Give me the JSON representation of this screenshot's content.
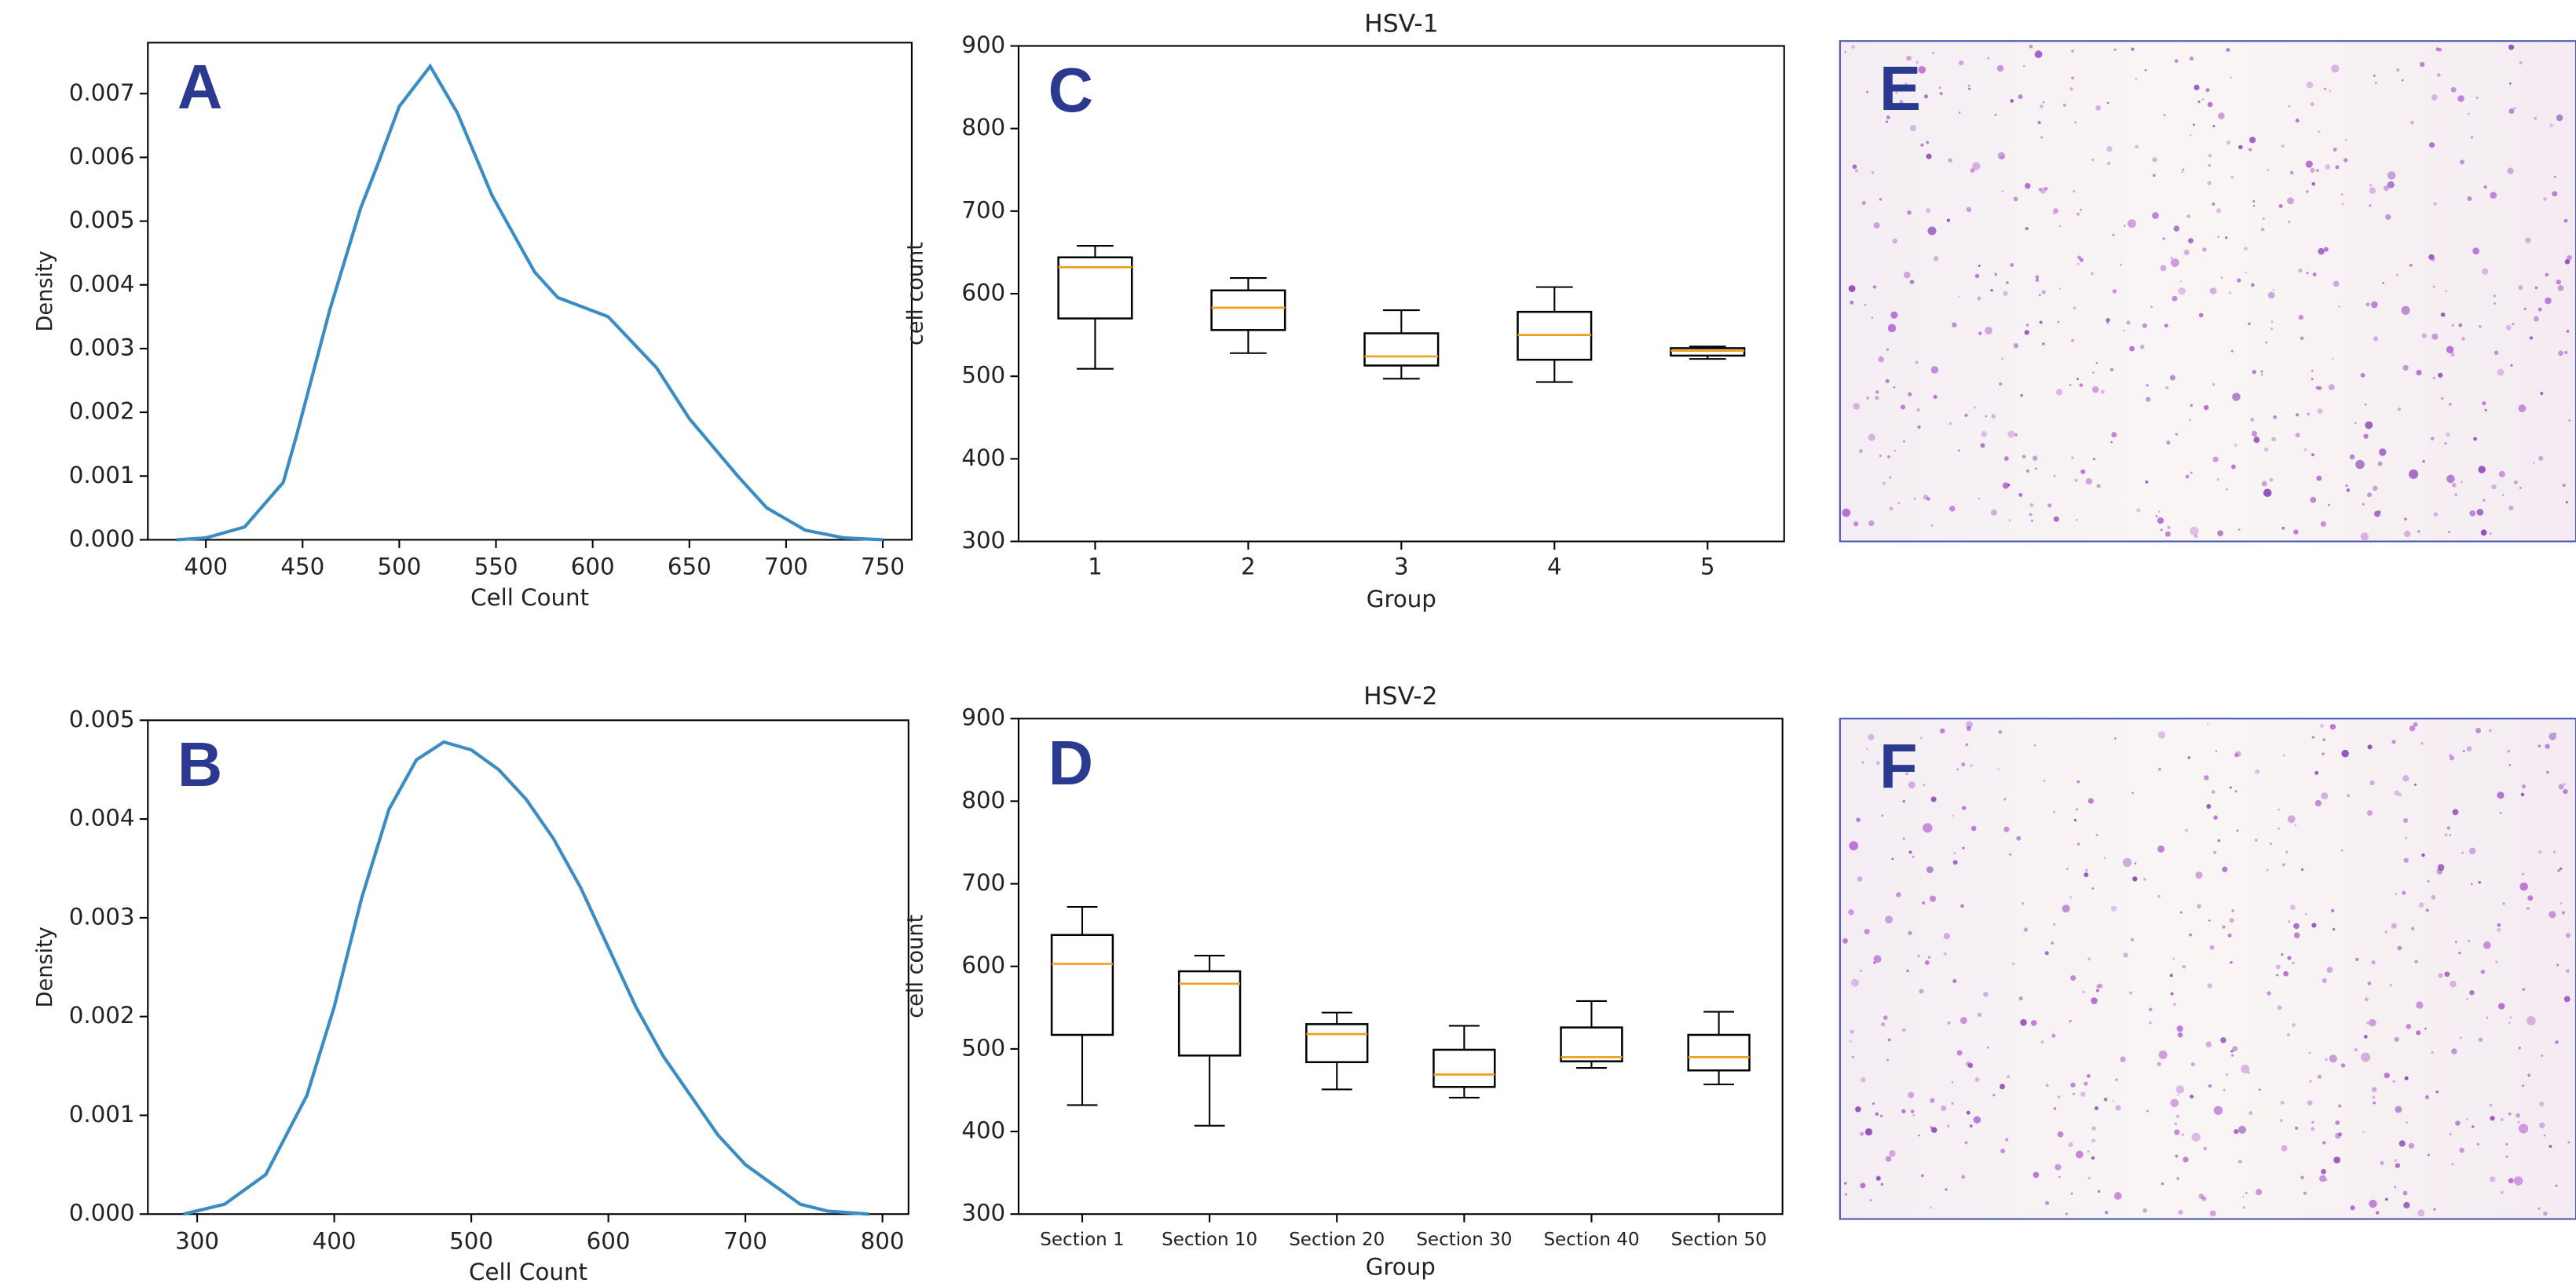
{
  "chart_data": [
    {
      "type": "line",
      "panel": "A",
      "xlabel": "Cell Count",
      "ylabel": "Density",
      "color": "#3a8cc4",
      "x": [
        385,
        400,
        420,
        440,
        447,
        464,
        480,
        489,
        500,
        516,
        530,
        548,
        570,
        582,
        608,
        633,
        650,
        675,
        690,
        710,
        730,
        750
      ],
      "values": [
        0,
        3e-05,
        0.0002,
        0.0009,
        0.00165,
        0.0036,
        0.0052,
        0.0059,
        0.0068,
        0.00743,
        0.0067,
        0.0054,
        0.0042,
        0.0038,
        0.0035,
        0.0027,
        0.0019,
        0.001,
        0.0005,
        0.00015,
        3e-05,
        0
      ],
      "xlim": [
        370,
        765
      ],
      "ylim": [
        0,
        0.0078
      ],
      "xticks": [
        400,
        450,
        500,
        550,
        600,
        650,
        700,
        750
      ],
      "yticks": [
        {
          "value": 0,
          "label": "0.000"
        },
        0.001,
        0.002,
        0.003,
        0.004,
        0.005,
        0.006,
        0.007
      ]
    },
    {
      "type": "line",
      "panel": "B",
      "xlabel": "Cell Count",
      "ylabel": "Density",
      "color": "#3a8cc4",
      "x": [
        290,
        320,
        350,
        380,
        400,
        420,
        440,
        460,
        480,
        500,
        520,
        540,
        560,
        580,
        600,
        620,
        640,
        660,
        680,
        700,
        720,
        740,
        760,
        790
      ],
      "values": [
        0,
        0.0001,
        0.0004,
        0.0012,
        0.0021,
        0.0032,
        0.0041,
        0.0046,
        0.00478,
        0.0047,
        0.0045,
        0.0042,
        0.0038,
        0.0033,
        0.0027,
        0.0021,
        0.0016,
        0.0012,
        0.0008,
        0.0005,
        0.0003,
        0.0001,
        3e-05,
        0
      ],
      "xlim": [
        264,
        819
      ],
      "ylim": [
        0,
        0.005
      ],
      "xticks": [
        300,
        400,
        500,
        600,
        700,
        800
      ],
      "yticks": [
        {
          "value": 0,
          "label": "0.000"
        },
        0.001,
        0.002,
        0.003,
        0.004,
        0.005
      ]
    },
    {
      "type": "box",
      "panel": "C",
      "title": "HSV-1",
      "xlabel": "Group",
      "ylabel": "cell count",
      "median_color": "#f0a020",
      "categories": [
        "1",
        "2",
        "3",
        "4",
        "5"
      ],
      "boxes": [
        {
          "whislo": 509,
          "q1": 570,
          "med": 632,
          "q3": 644,
          "whishi": 658
        },
        {
          "whislo": 528,
          "q1": 556,
          "med": 583,
          "q3": 604,
          "whishi": 619
        },
        {
          "whislo": 497,
          "q1": 513,
          "med": 524,
          "q3": 552,
          "whishi": 580
        },
        {
          "whislo": 493,
          "q1": 520,
          "med": 550,
          "q3": 578,
          "whishi": 608
        },
        {
          "whislo": 521,
          "q1": 525,
          "med": 531,
          "q3": 534,
          "whishi": 536
        }
      ],
      "ylim": [
        300,
        900
      ],
      "yticks": [
        300,
        400,
        500,
        600,
        700,
        800,
        900
      ]
    },
    {
      "type": "box",
      "panel": "D",
      "title": "HSV-2",
      "xlabel": "Group",
      "ylabel": "cell count",
      "median_color": "#f0a020",
      "categories": [
        "Section 1",
        "Section 10",
        "Section 20",
        "Section 30",
        "Section 40",
        "Section 50"
      ],
      "boxes": [
        {
          "whislo": 432,
          "q1": 517,
          "med": 603,
          "q3": 638,
          "whishi": 672
        },
        {
          "whislo": 407,
          "q1": 492,
          "med": 579,
          "q3": 594,
          "whishi": 613
        },
        {
          "whislo": 451,
          "q1": 484,
          "med": 518,
          "q3": 530,
          "whishi": 544
        },
        {
          "whislo": 441,
          "q1": 454,
          "med": 469,
          "q3": 499,
          "whishi": 528
        },
        {
          "whislo": 477,
          "q1": 485,
          "med": 490,
          "q3": 526,
          "whishi": 558
        },
        {
          "whislo": 457,
          "q1": 474,
          "med": 490,
          "q3": 517,
          "whishi": 545
        }
      ],
      "ylim": [
        300,
        900
      ],
      "yticks": [
        300,
        400,
        500,
        600,
        700,
        800,
        900
      ]
    },
    {
      "type": "image",
      "panel": "E"
    },
    {
      "type": "image",
      "panel": "F"
    }
  ]
}
